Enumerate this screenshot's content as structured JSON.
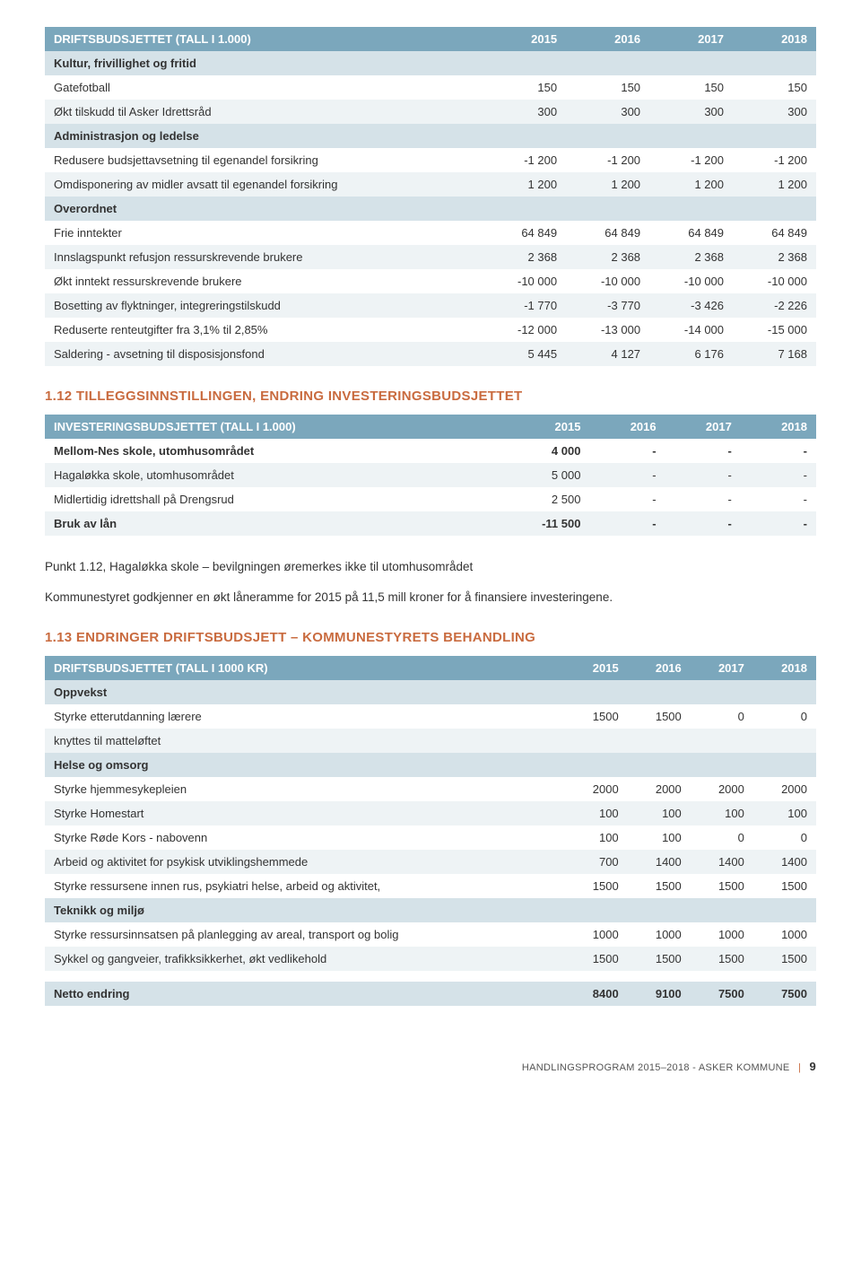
{
  "table1": {
    "header": [
      "DRIFTSBUDSJETTET (TALL I 1.000)",
      "2015",
      "2016",
      "2017",
      "2018"
    ],
    "rows": [
      {
        "type": "section",
        "cells": [
          "Kultur, frivillighet og fritid",
          "",
          "",
          "",
          ""
        ]
      },
      {
        "type": "plain",
        "cells": [
          "Gatefotball",
          "150",
          "150",
          "150",
          "150"
        ]
      },
      {
        "type": "alt",
        "cells": [
          "Økt tilskudd til Asker Idrettsråd",
          "300",
          "300",
          "300",
          "300"
        ]
      },
      {
        "type": "section",
        "cells": [
          "Administrasjon og ledelse",
          "",
          "",
          "",
          ""
        ]
      },
      {
        "type": "plain",
        "cells": [
          "Redusere budsjettavsetning til egenandel forsikring",
          "-1 200",
          "-1 200",
          "-1 200",
          "-1 200"
        ]
      },
      {
        "type": "alt",
        "cells": [
          "Omdisponering av midler avsatt til egenandel forsikring",
          "1 200",
          "1 200",
          "1 200",
          "1 200"
        ]
      },
      {
        "type": "section",
        "cells": [
          "Overordnet",
          "",
          "",
          "",
          ""
        ]
      },
      {
        "type": "plain",
        "cells": [
          "Frie inntekter",
          "64 849",
          "64 849",
          "64 849",
          "64 849"
        ]
      },
      {
        "type": "alt",
        "cells": [
          "Innslagspunkt refusjon ressurskrevende brukere",
          "2 368",
          "2 368",
          "2 368",
          "2 368"
        ]
      },
      {
        "type": "plain",
        "cells": [
          "Økt inntekt ressurskrevende brukere",
          "-10 000",
          "-10 000",
          "-10 000",
          "-10 000"
        ]
      },
      {
        "type": "alt",
        "cells": [
          "Bosetting av flyktninger, integreringstilskudd",
          "-1 770",
          "-3 770",
          "-3 426",
          "-2 226"
        ]
      },
      {
        "type": "plain",
        "cells": [
          "Reduserte renteutgifter fra 3,1% til 2,85%",
          "-12 000",
          "-13 000",
          "-14 000",
          "-15 000"
        ]
      },
      {
        "type": "alt",
        "cells": [
          "Saldering - avsetning til disposisjonsfond",
          "5 445",
          "4 127",
          "6 176",
          "7 168"
        ]
      }
    ]
  },
  "heading2": "1.12 TILLEGGSINNSTILLINGEN, ENDRING INVESTERINGSBUDSJETTET",
  "table2": {
    "header": [
      "INVESTERINGSBUDSJETTET (TALL I 1.000)",
      "2015",
      "2016",
      "2017",
      "2018"
    ],
    "rows": [
      {
        "type": "plain",
        "bold": true,
        "cells": [
          "Mellom-Nes skole, utomhusområdet",
          "4 000",
          "-",
          "-",
          "-"
        ]
      },
      {
        "type": "alt",
        "cells": [
          "Hagaløkka skole, utomhusområdet",
          "5 000",
          "-",
          "-",
          "-"
        ]
      },
      {
        "type": "plain",
        "cells": [
          "Midlertidig idrettshall på Drengsrud",
          "2 500",
          "-",
          "-",
          "-"
        ]
      },
      {
        "type": "alt",
        "bold": true,
        "cells": [
          "Bruk av lån",
          "-11 500",
          "-",
          "-",
          "-"
        ]
      }
    ]
  },
  "para1": "Punkt 1.12, Hagaløkka skole – bevilgningen øremerkes ikke til utomhusområdet",
  "para2": "Kommunestyret godkjenner en økt låneramme for 2015 på 11,5 mill kroner for å finansiere investeringene.",
  "heading3": "1.13 ENDRINGER DRIFTSBUDSJETT – KOMMUNESTYRETS BEHANDLING",
  "table3": {
    "header": [
      "DRIFTSBUDSJETTET (TALL I 1000 KR)",
      "2015",
      "2016",
      "2017",
      "2018"
    ],
    "rows": [
      {
        "type": "section",
        "cells": [
          "Oppvekst",
          "",
          "",
          "",
          ""
        ]
      },
      {
        "type": "plain",
        "cells": [
          "Styrke etterutdanning lærere",
          "1500",
          "1500",
          "0",
          "0"
        ]
      },
      {
        "type": "alt",
        "cells": [
          "knyttes til matteløftet",
          "",
          "",
          "",
          ""
        ]
      },
      {
        "type": "section",
        "cells": [
          "Helse og omsorg",
          "",
          "",
          "",
          ""
        ]
      },
      {
        "type": "plain",
        "cells": [
          "Styrke hjemmesykepleien",
          "2000",
          "2000",
          "2000",
          "2000"
        ]
      },
      {
        "type": "alt",
        "cells": [
          "Styrke Homestart",
          "100",
          "100",
          "100",
          "100"
        ]
      },
      {
        "type": "plain",
        "cells": [
          "Styrke Røde Kors - nabovenn",
          "100",
          "100",
          "0",
          "0"
        ]
      },
      {
        "type": "alt",
        "cells": [
          "Arbeid og aktivitet for psykisk utviklingshemmede",
          "700",
          "1400",
          "1400",
          "1400"
        ]
      },
      {
        "type": "plain",
        "cells": [
          "Styrke ressursene innen rus, psykiatri helse, arbeid og aktivitet,",
          "1500",
          "1500",
          "1500",
          "1500"
        ]
      },
      {
        "type": "section",
        "cells": [
          "Teknikk og miljø",
          "",
          "",
          "",
          ""
        ]
      },
      {
        "type": "plain",
        "cells": [
          "Styrke ressursinnsatsen på planlegging av areal, transport og bolig",
          "1000",
          "1000",
          "1000",
          "1000"
        ]
      },
      {
        "type": "alt",
        "cells": [
          "Sykkel og gangveier, trafikksikkerhet, økt vedlikehold",
          "1500",
          "1500",
          "1500",
          "1500"
        ]
      },
      {
        "type": "plain",
        "cells": [
          "",
          "",
          "",
          "",
          ""
        ]
      },
      {
        "type": "section",
        "bold": true,
        "cells": [
          "Netto endring",
          "8400",
          "9100",
          "7500",
          "7500"
        ]
      }
    ]
  },
  "footer": {
    "text": "HANDLINGSPROGRAM 2015–2018 - ASKER KOMMUNE",
    "page": "9"
  },
  "colors": {
    "header_bg": "#7ba7bc",
    "header_fg": "#ffffff",
    "section_bg": "#d5e2e8",
    "alt_bg": "#eef3f5",
    "heading_color": "#c96b3f"
  }
}
